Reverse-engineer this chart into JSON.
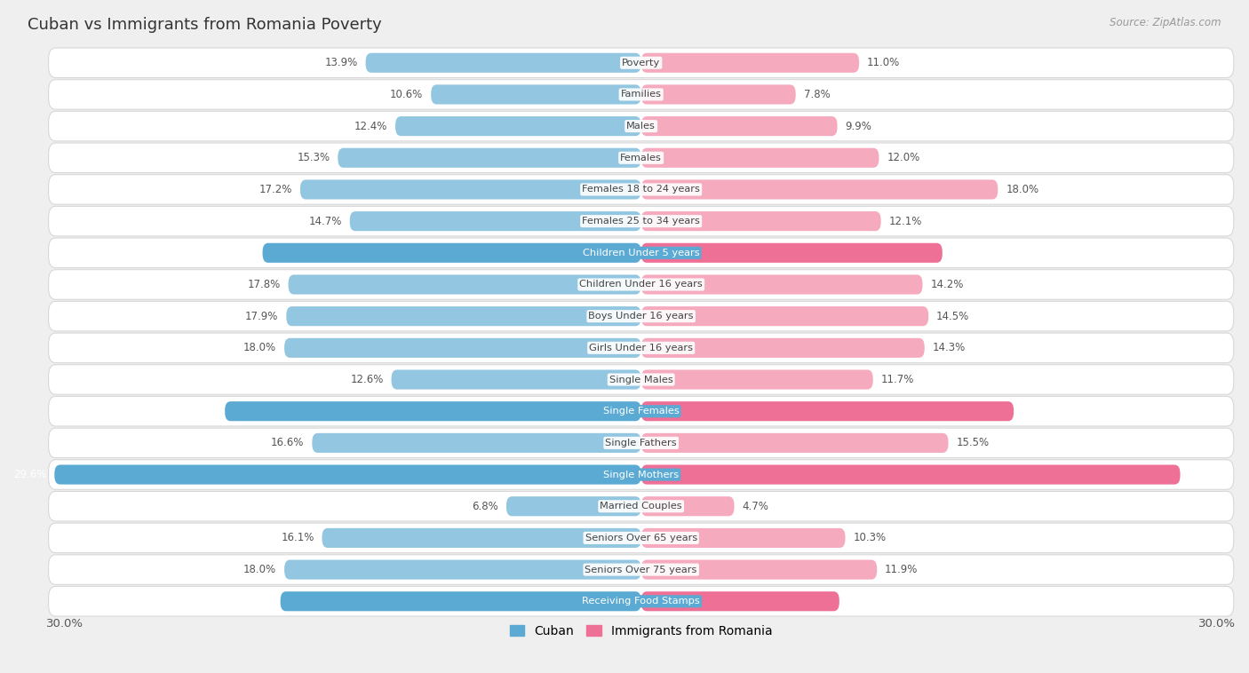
{
  "title": "Cuban vs Immigrants from Romania Poverty",
  "source": "Source: ZipAtlas.com",
  "categories": [
    "Poverty",
    "Families",
    "Males",
    "Females",
    "Females 18 to 24 years",
    "Females 25 to 34 years",
    "Children Under 5 years",
    "Children Under 16 years",
    "Boys Under 16 years",
    "Girls Under 16 years",
    "Single Males",
    "Single Females",
    "Single Fathers",
    "Single Mothers",
    "Married Couples",
    "Seniors Over 65 years",
    "Seniors Over 75 years",
    "Receiving Food Stamps"
  ],
  "cuban": [
    13.9,
    10.6,
    12.4,
    15.3,
    17.2,
    14.7,
    19.1,
    17.8,
    17.9,
    18.0,
    12.6,
    21.0,
    16.6,
    29.6,
    6.8,
    16.1,
    18.0,
    18.2
  ],
  "romania": [
    11.0,
    7.8,
    9.9,
    12.0,
    18.0,
    12.1,
    15.2,
    14.2,
    14.5,
    14.3,
    11.7,
    18.8,
    15.5,
    27.2,
    4.7,
    10.3,
    11.9,
    10.0
  ],
  "cuban_color_normal": "#93C6E0",
  "cuban_color_highlight": "#5BAAD4",
  "romania_color_normal": "#F5AABE",
  "romania_color_highlight": "#EE7096",
  "highlight_indices": [
    6,
    11,
    13,
    17
  ],
  "xlim": 30.0,
  "background_color": "#EFEFEF",
  "row_bg_color": "#FFFFFF",
  "label_color_normal": "#555555",
  "label_color_highlight": "#FFFFFF",
  "legend_cuban": "Cuban",
  "legend_romania": "Immigrants from Romania"
}
